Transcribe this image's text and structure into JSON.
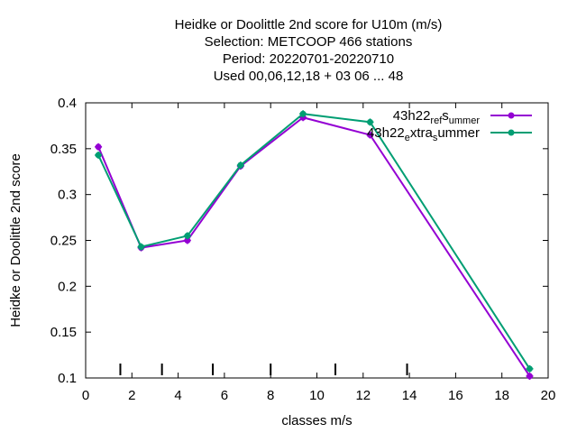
{
  "chart_data": {
    "type": "line",
    "title_lines": [
      "Heidke or Doolittle 2nd score  for U10m (m/s)",
      "Selection: METCOOP    466 stations",
      "Period: 20220701-20220710",
      "Used  00,06,12,18  + 03 06 ... 48"
    ],
    "xlabel": "classes m/s",
    "ylabel": "Heidke or Doolittle 2nd score",
    "xlim": [
      0,
      20
    ],
    "ylim": [
      0.1,
      0.4
    ],
    "xticks": [
      0,
      2,
      4,
      6,
      8,
      10,
      12,
      14,
      16,
      18,
      20
    ],
    "xtick_labels": [
      "0",
      "2",
      "4",
      "6",
      "8",
      "10",
      "12",
      "14",
      "16",
      "18",
      "20"
    ],
    "yticks": [
      0.1,
      0.15,
      0.2,
      0.25,
      0.3,
      0.35,
      0.4
    ],
    "ytick_labels": [
      "0.1",
      "0.15",
      "0.2",
      "0.25",
      "0.3",
      "0.35",
      "0.4"
    ],
    "class_markers_x": [
      1.5,
      3.3,
      5.5,
      8.0,
      10.8,
      13.9
    ],
    "legend_position": "top-right",
    "series": [
      {
        "name": "43h22_ref_summer",
        "legend_parts": [
          "43h22",
          "ref",
          "s",
          "ummer"
        ],
        "color": "#9400d3",
        "x": [
          0.55,
          2.4,
          4.4,
          6.7,
          9.4,
          12.3,
          19.2
        ],
        "y": [
          0.352,
          0.242,
          0.25,
          0.331,
          0.384,
          0.365,
          0.102
        ]
      },
      {
        "name": "43h22_extra_summer",
        "legend_parts": [
          "43h22",
          "e",
          "xtra",
          "s",
          "ummer"
        ],
        "color": "#009e73",
        "x": [
          0.55,
          2.4,
          4.4,
          6.7,
          9.4,
          12.3,
          19.2
        ],
        "y": [
          0.343,
          0.243,
          0.255,
          0.332,
          0.388,
          0.379,
          0.11
        ]
      }
    ]
  }
}
